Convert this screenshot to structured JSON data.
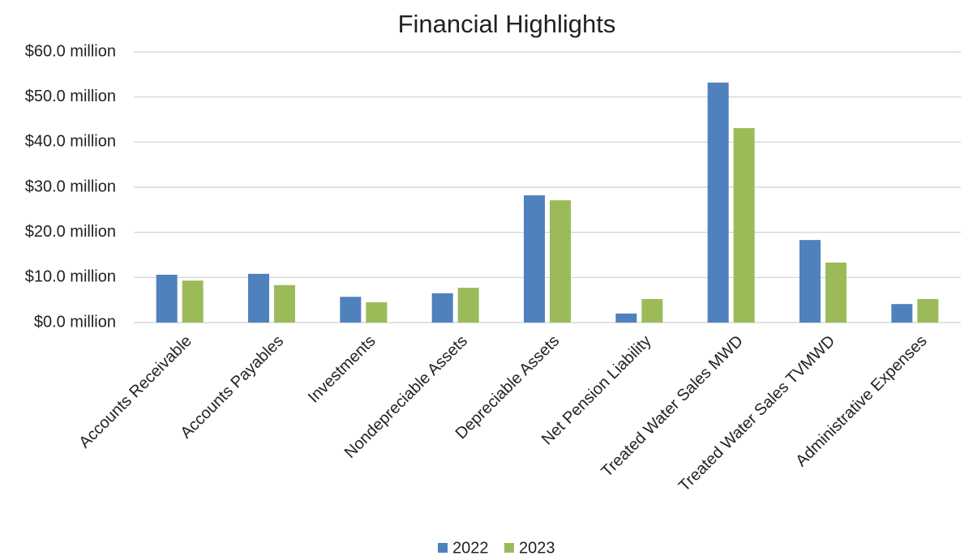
{
  "chart_data": {
    "type": "bar",
    "title": "Financial Highlights",
    "categories": [
      "Accounts Receivable",
      "Accounts Payables",
      "Investments",
      "Nondepreciable Assets",
      "Depreciable Assets",
      "Net Pension Liability",
      "Treated Water Sales MWD",
      "Treated Water Sales TVMWD",
      "Administrative Expenses"
    ],
    "series": [
      {
        "name": "2022",
        "color": "#4f81bd",
        "values": [
          10.6,
          10.8,
          5.7,
          6.5,
          28.2,
          2.0,
          53.2,
          18.3,
          4.1
        ]
      },
      {
        "name": "2023",
        "color": "#9bbb59",
        "values": [
          9.3,
          8.3,
          4.5,
          7.7,
          27.1,
          5.2,
          43.1,
          13.3,
          5.2
        ]
      }
    ],
    "ylim": [
      0,
      60
    ],
    "yticks": [
      {
        "value": 0,
        "label": "$0.0 million"
      },
      {
        "value": 10,
        "label": "$10.0 million"
      },
      {
        "value": 20,
        "label": "$20.0 million"
      },
      {
        "value": 30,
        "label": "$30.0 million"
      },
      {
        "value": 40,
        "label": "$40.0 million"
      },
      {
        "value": 50,
        "label": "$50.0 million"
      },
      {
        "value": 60,
        "label": "$60.0 million"
      }
    ],
    "grid": true,
    "legend": "bottom"
  }
}
